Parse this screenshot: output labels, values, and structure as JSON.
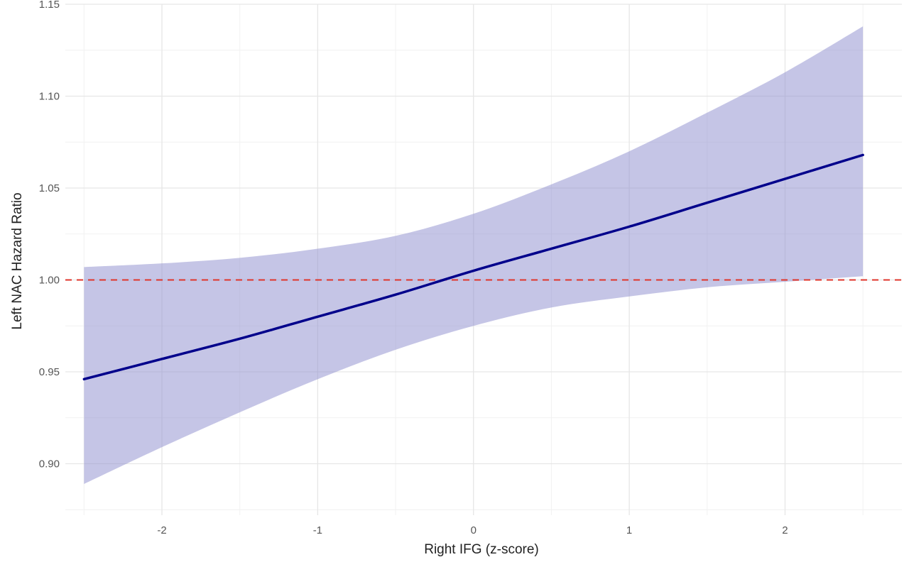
{
  "chart_data": {
    "type": "line",
    "title": "",
    "xlabel": "Right IFG (z-score)",
    "ylabel": "Left NAC Hazard Ratio",
    "xlim": [
      -2.62,
      2.75
    ],
    "ylim": [
      0.872,
      1.15
    ],
    "x_ticks": [
      -2,
      -1,
      0,
      1,
      2
    ],
    "x_tick_labels": [
      "-2",
      "-1",
      "0",
      "1",
      "2"
    ],
    "y_ticks": [
      0.9,
      0.95,
      1.0,
      1.05,
      1.1,
      1.15
    ],
    "y_tick_labels": [
      "0.90",
      "0.95",
      "1.00",
      "1.05",
      "1.10",
      "1.15"
    ],
    "grid": true,
    "legend": "none",
    "series": [
      {
        "type": "line",
        "x": [
          -2.5,
          -2,
          -1.5,
          -1,
          -0.5,
          0,
          0.5,
          1,
          1.5,
          2,
          2.5
        ],
        "y": [
          0.946,
          0.957,
          0.968,
          0.98,
          0.992,
          1.005,
          1.017,
          1.029,
          1.042,
          1.055,
          1.068
        ],
        "color": "#00008b"
      }
    ],
    "confidence_band": {
      "x": [
        -2.5,
        -2,
        -1.5,
        -1,
        -0.5,
        0,
        0.5,
        1,
        1.5,
        2,
        2.5
      ],
      "lower": [
        0.889,
        0.909,
        0.928,
        0.946,
        0.962,
        0.975,
        0.985,
        0.991,
        0.996,
        0.999,
        1.002
      ],
      "upper": [
        1.007,
        1.009,
        1.012,
        1.017,
        1.024,
        1.036,
        1.052,
        1.07,
        1.091,
        1.113,
        1.138
      ],
      "color": "#8b8bce"
    },
    "reference_line": {
      "y": 1.0,
      "style": "dashed",
      "color": "#e0352b"
    }
  }
}
